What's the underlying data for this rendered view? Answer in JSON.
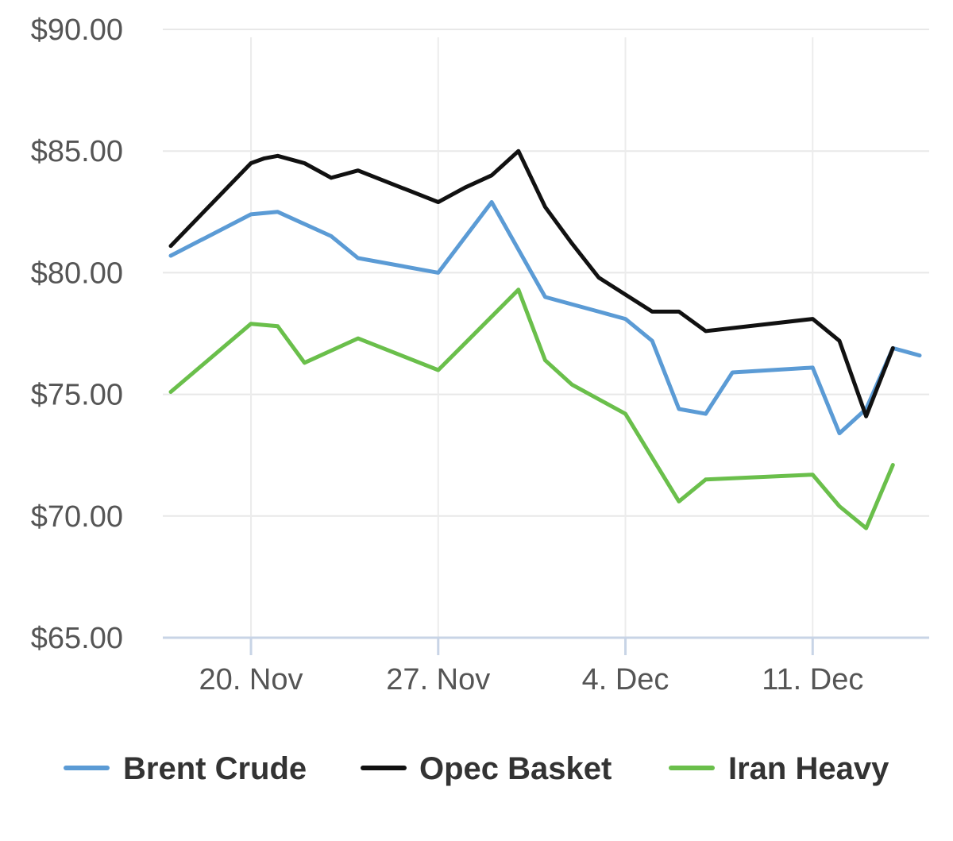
{
  "chart_data": {
    "type": "line",
    "title": "",
    "xlabel": "",
    "ylabel": "",
    "ylim": [
      65,
      90
    ],
    "y_ticks": [
      "$90.00",
      "$85.00",
      "$80.00",
      "$75.00",
      "$70.00",
      "$65.00"
    ],
    "y_tick_values": [
      90,
      85,
      80,
      75,
      70,
      65
    ],
    "x_ticks": [
      "20. Nov",
      "27. Nov",
      "4. Dec",
      "11. Dec"
    ],
    "x_tick_days": [
      20,
      27,
      34,
      41
    ],
    "xlim_days": [
      17,
      45
    ],
    "grid": true,
    "legend_position": "bottom",
    "series": [
      {
        "name": "Brent Crude",
        "color": "#5b9bd5",
        "points": [
          [
            17,
            80.7
          ],
          [
            20,
            82.4
          ],
          [
            21,
            82.5
          ],
          [
            23,
            81.5
          ],
          [
            24,
            80.6
          ],
          [
            27,
            80.0
          ],
          [
            29,
            82.9
          ],
          [
            31,
            79.0
          ],
          [
            33,
            78.4
          ],
          [
            34,
            78.1
          ],
          [
            35,
            77.2
          ],
          [
            36,
            74.4
          ],
          [
            37,
            74.2
          ],
          [
            38,
            75.9
          ],
          [
            41,
            76.1
          ],
          [
            42,
            73.4
          ],
          [
            43,
            74.4
          ],
          [
            44,
            76.9
          ],
          [
            45,
            76.6
          ]
        ]
      },
      {
        "name": "Opec Basket",
        "color": "#111111",
        "points": [
          [
            17,
            81.1
          ],
          [
            20,
            84.5
          ],
          [
            20.5,
            84.7
          ],
          [
            21,
            84.8
          ],
          [
            22,
            84.5
          ],
          [
            23,
            83.9
          ],
          [
            24,
            84.2
          ],
          [
            27,
            82.9
          ],
          [
            28,
            83.5
          ],
          [
            29,
            84.0
          ],
          [
            30,
            85.0
          ],
          [
            31,
            82.7
          ],
          [
            32,
            81.2
          ],
          [
            33,
            79.8
          ],
          [
            35,
            78.4
          ],
          [
            36,
            78.4
          ],
          [
            37,
            77.6
          ],
          [
            41,
            78.1
          ],
          [
            42,
            77.2
          ],
          [
            43,
            74.1
          ],
          [
            44,
            76.9
          ]
        ]
      },
      {
        "name": "Iran Heavy",
        "color": "#6abf4b",
        "points": [
          [
            17,
            75.1
          ],
          [
            20,
            77.9
          ],
          [
            21,
            77.8
          ],
          [
            22,
            76.3
          ],
          [
            24,
            77.3
          ],
          [
            27,
            76.0
          ],
          [
            28,
            77.1
          ],
          [
            30,
            79.3
          ],
          [
            31,
            76.4
          ],
          [
            32,
            75.4
          ],
          [
            34,
            74.2
          ],
          [
            35,
            72.4
          ],
          [
            36,
            70.6
          ],
          [
            37,
            71.5
          ],
          [
            41,
            71.7
          ],
          [
            42,
            70.4
          ],
          [
            43,
            69.5
          ],
          [
            44,
            72.1
          ]
        ]
      }
    ]
  }
}
